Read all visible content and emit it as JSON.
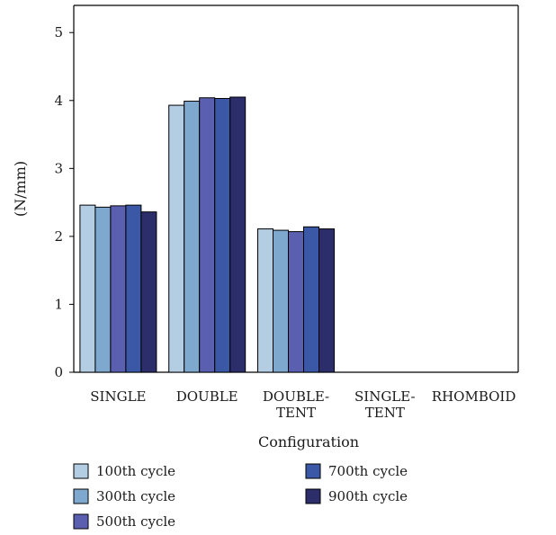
{
  "chart_data": {
    "type": "bar",
    "title": "",
    "xlabel": "Configuration",
    "ylabel": "(N/mm)",
    "ylim": [
      0,
      5.4
    ],
    "yticks": [
      0,
      1,
      2,
      3,
      4,
      5
    ],
    "grid": false,
    "legend_position": "bottom-left",
    "categories": [
      [
        "SINGLE"
      ],
      [
        "DOUBLE"
      ],
      [
        "DOUBLE-",
        "TENT"
      ],
      [
        "SINGLE-",
        "TENT"
      ],
      [
        "RHOMBOID"
      ]
    ],
    "series": [
      {
        "name": "100th cycle",
        "color": "#b3cde3",
        "values": [
          2.46,
          3.93,
          2.11,
          null,
          null
        ]
      },
      {
        "name": "300th cycle",
        "color": "#7fa8cf",
        "values": [
          2.43,
          3.99,
          2.09,
          null,
          null
        ]
      },
      {
        "name": "500th cycle",
        "color": "#5a5fb0",
        "values": [
          2.45,
          4.04,
          2.07,
          null,
          null
        ]
      },
      {
        "name": "700th cycle",
        "color": "#3a58a6",
        "values": [
          2.46,
          4.03,
          2.14,
          null,
          null
        ]
      },
      {
        "name": "900th cycle",
        "color": "#2b2e6b",
        "values": [
          2.36,
          4.05,
          2.11,
          null,
          null
        ]
      }
    ]
  }
}
